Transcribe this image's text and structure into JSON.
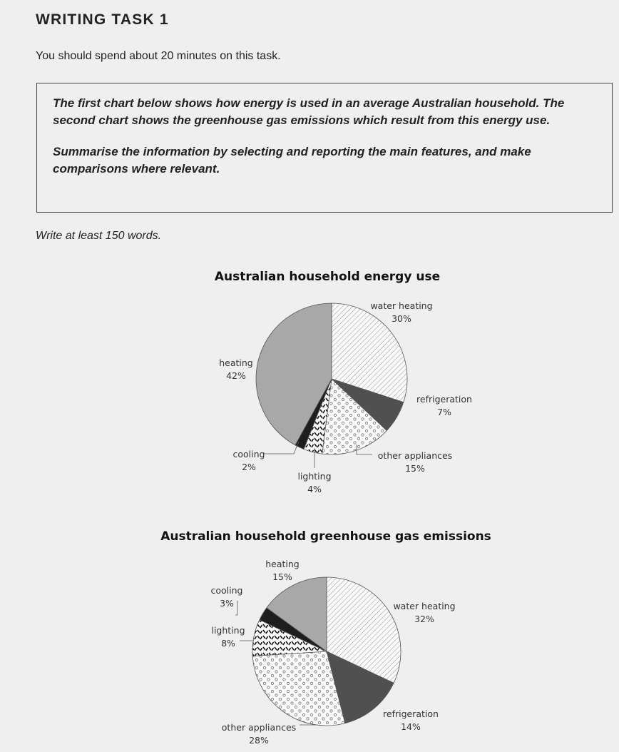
{
  "task": {
    "heading": "WRITING TASK 1",
    "instruction": "You should spend about 20 minutes on this task.",
    "prompt_line1": "The first chart below shows how energy is used in an average Australian household. The second chart shows the greenhouse gas emissions which result from this energy use.",
    "prompt_line2": "Summarise the information by selecting and reporting the main features, and make comparisons where relevant.",
    "word_count": "Write at least 150 words."
  },
  "chart_data": [
    {
      "type": "pie",
      "title": "Australian household energy use",
      "slices": [
        {
          "label": "water heating",
          "value": 30,
          "value_label": "30%",
          "pattern": "diagonal-hatch"
        },
        {
          "label": "refrigeration",
          "value": 7,
          "value_label": "7%",
          "pattern": "dark-grey"
        },
        {
          "label": "other appliances",
          "value": 15,
          "value_label": "15%",
          "pattern": "dots"
        },
        {
          "label": "lighting",
          "value": 4,
          "value_label": "4%",
          "pattern": "dashes"
        },
        {
          "label": "cooling",
          "value": 2,
          "value_label": "2%",
          "pattern": "black"
        },
        {
          "label": "heating",
          "value": 42,
          "value_label": "42%",
          "pattern": "mid-grey"
        }
      ]
    },
    {
      "type": "pie",
      "title": "Australian household greenhouse gas emissions",
      "slices": [
        {
          "label": "water heating",
          "value": 32,
          "value_label": "32%",
          "pattern": "diagonal-hatch"
        },
        {
          "label": "refrigeration",
          "value": 14,
          "value_label": "14%",
          "pattern": "dark-grey"
        },
        {
          "label": "other appliances",
          "value": 28,
          "value_label": "28%",
          "pattern": "dots"
        },
        {
          "label": "lighting",
          "value": 8,
          "value_label": "8%",
          "pattern": "dashes"
        },
        {
          "label": "cooling",
          "value": 3,
          "value_label": "3%",
          "pattern": "black"
        },
        {
          "label": "heating",
          "value": 15,
          "value_label": "15%",
          "pattern": "mid-grey"
        }
      ]
    }
  ],
  "colors": {
    "background": "#efefef",
    "mid-grey": "#a8a8a8",
    "dark-grey": "#505050",
    "black": "#1e1e1e",
    "hatch": "#8a8a8a",
    "outline": "#555555"
  }
}
